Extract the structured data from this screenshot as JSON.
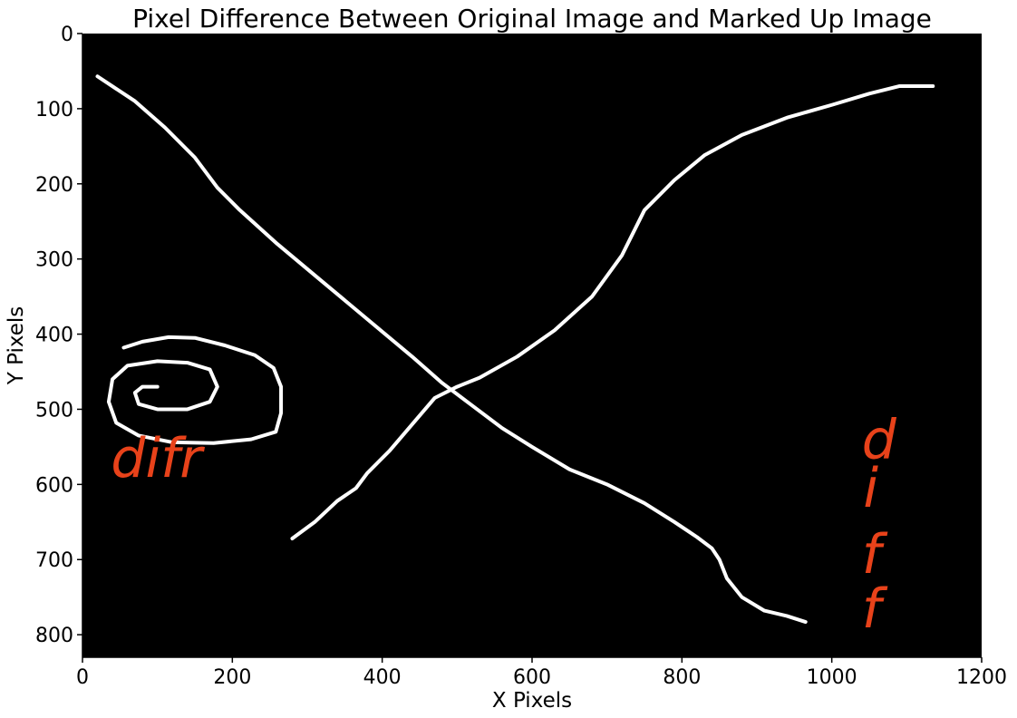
{
  "chart_data": {
    "type": "image",
    "title": "Pixel Difference Between Original Image and Marked Up Image",
    "xlabel": "X Pixels",
    "ylabel": "Y Pixels",
    "xlim": [
      0,
      1200
    ],
    "ylim": [
      830,
      0
    ],
    "y_inverted": true,
    "grid": false,
    "background_color": "#000000",
    "stroke_color": "#ffffff",
    "annotation_color": "#e8421a",
    "xticks": [
      0,
      200,
      400,
      600,
      800,
      1000,
      1200
    ],
    "yticks": [
      0,
      100,
      200,
      300,
      400,
      500,
      600,
      700,
      800
    ],
    "series": [
      {
        "id": "descending-stroke",
        "color": "#ffffff",
        "points": [
          [
            20,
            57
          ],
          [
            70,
            90
          ],
          [
            110,
            125
          ],
          [
            150,
            165
          ],
          [
            180,
            205
          ],
          [
            210,
            235
          ],
          [
            260,
            280
          ],
          [
            320,
            330
          ],
          [
            380,
            380
          ],
          [
            440,
            430
          ],
          [
            480,
            465
          ],
          [
            520,
            495
          ],
          [
            560,
            525
          ],
          [
            600,
            550
          ],
          [
            650,
            580
          ],
          [
            700,
            600
          ],
          [
            750,
            625
          ],
          [
            790,
            650
          ],
          [
            820,
            670
          ],
          [
            840,
            685
          ],
          [
            850,
            700
          ],
          [
            860,
            725
          ],
          [
            880,
            750
          ],
          [
            910,
            768
          ],
          [
            940,
            775
          ],
          [
            965,
            783
          ]
        ]
      },
      {
        "id": "ascending-stroke",
        "color": "#ffffff",
        "points": [
          [
            280,
            672
          ],
          [
            310,
            650
          ],
          [
            340,
            622
          ],
          [
            365,
            605
          ],
          [
            380,
            585
          ],
          [
            410,
            555
          ],
          [
            440,
            520
          ],
          [
            470,
            485
          ],
          [
            500,
            470
          ],
          [
            530,
            458
          ],
          [
            580,
            430
          ],
          [
            630,
            395
          ],
          [
            680,
            350
          ],
          [
            720,
            295
          ],
          [
            750,
            235
          ],
          [
            790,
            195
          ],
          [
            830,
            162
          ],
          [
            880,
            135
          ],
          [
            940,
            112
          ],
          [
            1000,
            95
          ],
          [
            1050,
            80
          ],
          [
            1090,
            70
          ],
          [
            1135,
            70
          ]
        ]
      },
      {
        "id": "spiral-stroke",
        "color": "#ffffff",
        "points": [
          [
            55,
            418
          ],
          [
            80,
            410
          ],
          [
            115,
            404
          ],
          [
            150,
            405
          ],
          [
            190,
            415
          ],
          [
            230,
            428
          ],
          [
            255,
            445
          ],
          [
            265,
            470
          ],
          [
            265,
            505
          ],
          [
            258,
            530
          ],
          [
            225,
            540
          ],
          [
            175,
            545
          ],
          [
            120,
            544
          ],
          [
            75,
            535
          ],
          [
            45,
            518
          ],
          [
            35,
            490
          ],
          [
            40,
            460
          ],
          [
            60,
            442
          ],
          [
            100,
            436
          ],
          [
            140,
            438
          ],
          [
            170,
            447
          ],
          [
            180,
            470
          ],
          [
            170,
            490
          ],
          [
            140,
            500
          ],
          [
            100,
            500
          ],
          [
            75,
            493
          ],
          [
            70,
            478
          ],
          [
            80,
            470
          ],
          [
            100,
            470
          ]
        ]
      }
    ],
    "annotations": [
      {
        "text": "difr",
        "x": 38,
        "y": 590
      },
      {
        "text": "d",
        "x": 1040,
        "y": 565
      },
      {
        "text": "i",
        "x": 1042,
        "y": 630
      },
      {
        "text": "f",
        "x": 1040,
        "y": 718
      },
      {
        "text": "f",
        "x": 1040,
        "y": 790
      }
    ]
  }
}
